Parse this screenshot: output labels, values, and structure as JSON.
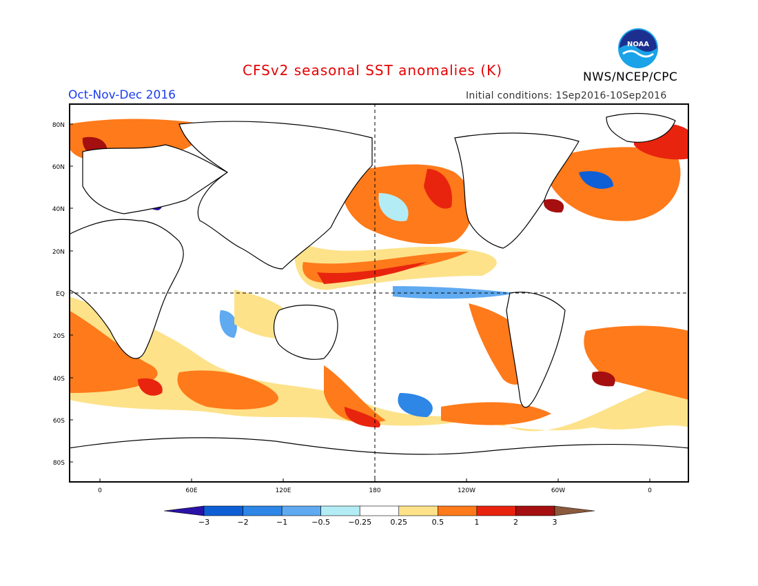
{
  "header": {
    "title": "CFSv2 seasonal SST anomalies (K)",
    "agency": "NWS/NCEP/CPC",
    "period": "Oct-Nov-Dec 2016",
    "initial_conditions": "Initial conditions: 1Sep2016-10Sep2016",
    "logo_text": "NOAA"
  },
  "map": {
    "lat_labels": [
      "80N",
      "60N",
      "40N",
      "20N",
      "EQ",
      "20S",
      "40S",
      "60S",
      "80S"
    ],
    "lon_labels": [
      "0",
      "60E",
      "120E",
      "180",
      "120W",
      "60W",
      "0"
    ]
  },
  "colorbar": {
    "labels": [
      "−3",
      "−2",
      "−1",
      "−0.5",
      "−0.25",
      "0.25",
      "0.5",
      "1",
      "2",
      "3"
    ],
    "colors": [
      "#2b12a6",
      "#0e5fd6",
      "#2e86e6",
      "#5faaf0",
      "#b3ecf5",
      "#ffffff",
      "#fde28a",
      "#ff7a1a",
      "#e8240f",
      "#a50f0f",
      "#8b5a3c"
    ]
  }
}
